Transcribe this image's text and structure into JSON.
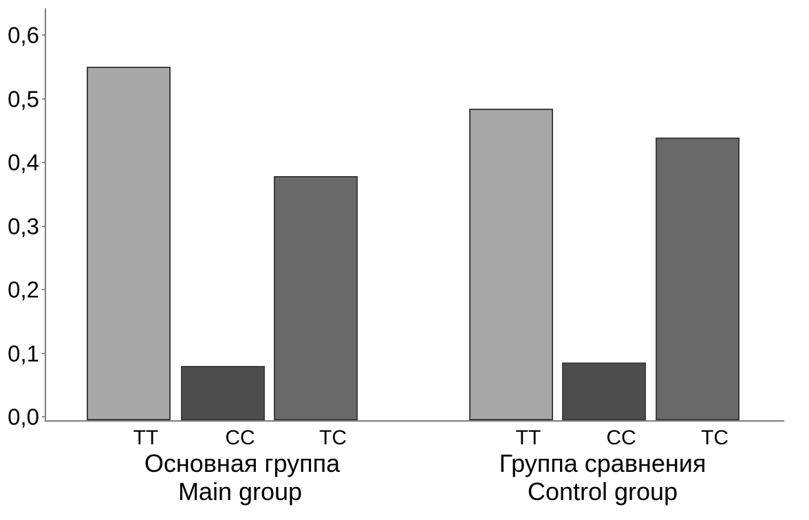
{
  "chart_data": {
    "type": "bar",
    "title": "",
    "xlabel": "",
    "ylabel": "",
    "ylim": [
      0,
      0.65
    ],
    "grid": false,
    "legend": false,
    "decimal_separator": ",",
    "yticks": {
      "values": [
        0,
        0.1,
        0.2,
        0.3,
        0.4,
        0.5,
        0.6
      ],
      "labels": [
        "0,0",
        "0,1",
        "0,2",
        "0,3",
        "0,4",
        "0,5",
        "0,6"
      ]
    },
    "categories": [
      "TT",
      "CC",
      "TC"
    ],
    "groups": [
      {
        "name_ru": "Основная группа",
        "name_en": "Main group",
        "categories": [
          "TT",
          "CC",
          "TC"
        ],
        "values": [
          0.55,
          0.085,
          0.38
        ]
      },
      {
        "name_ru": "Группа сравнения",
        "name_en": "Control group",
        "categories": [
          "TT",
          "CC",
          "TC"
        ],
        "values": [
          0.485,
          0.09,
          0.44
        ]
      }
    ],
    "bar_colors": {
      "TT": "#a8a8a8",
      "CC": "#4d4d4d",
      "TC": "#696969"
    },
    "bar_border_color": "#3e3e3e",
    "axis_color": "#7d7d7d",
    "text_color": "#000000"
  }
}
